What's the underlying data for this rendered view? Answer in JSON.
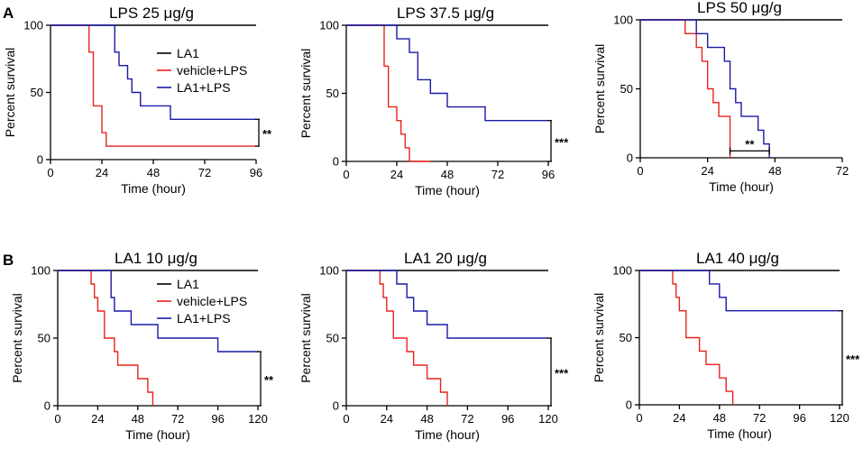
{
  "panel_labels": [
    "A",
    "B"
  ],
  "series_colors": {
    "LA1": "#000000",
    "vehicle+LPS": "#e8231c",
    "LA1+LPS": "#1a1aa8"
  },
  "chart_data": [
    {
      "type": "line",
      "step": true,
      "panel": "A",
      "title": "LPS  25 μg/g",
      "xlabel": "Time (hour)",
      "ylabel": "Percent survival",
      "xlim": [
        0,
        96
      ],
      "ylim": [
        0,
        100
      ],
      "xticks": [
        0,
        24,
        48,
        72,
        96
      ],
      "yticks": [
        0,
        50,
        100
      ],
      "legend": [
        "LA1",
        "vehicle+LPS",
        "LA1+LPS"
      ],
      "series": [
        {
          "name": "LA1",
          "x": [
            0,
            96
          ],
          "y": [
            100,
            100
          ]
        },
        {
          "name": "vehicle+LPS",
          "x": [
            0,
            18,
            20,
            22,
            24,
            26,
            96
          ],
          "y": [
            100,
            80,
            40,
            40,
            20,
            10,
            10
          ]
        },
        {
          "name": "LA1+LPS",
          "x": [
            0,
            30,
            32,
            36,
            38,
            42,
            48,
            56,
            96
          ],
          "y": [
            100,
            80,
            70,
            60,
            50,
            40,
            40,
            30,
            30
          ]
        }
      ],
      "significance": {
        "label": "**",
        "type": "vertical",
        "x": 96,
        "y_range": [
          10,
          30
        ]
      }
    },
    {
      "type": "line",
      "step": true,
      "panel": "A",
      "title": "LPS  37.5 μg/g",
      "xlabel": "Time (hour)",
      "ylabel": "Percent survival",
      "xlim": [
        0,
        96
      ],
      "ylim": [
        0,
        100
      ],
      "xticks": [
        0,
        24,
        48,
        72,
        96
      ],
      "yticks": [
        0,
        50,
        100
      ],
      "series": [
        {
          "name": "LA1",
          "x": [
            0,
            96
          ],
          "y": [
            100,
            100
          ]
        },
        {
          "name": "vehicle+LPS",
          "x": [
            0,
            18,
            20,
            24,
            26,
            28,
            30,
            40
          ],
          "y": [
            100,
            70,
            40,
            30,
            20,
            10,
            0,
            0
          ]
        },
        {
          "name": "LA1+LPS",
          "x": [
            0,
            24,
            30,
            34,
            40,
            48,
            66,
            96
          ],
          "y": [
            100,
            90,
            80,
            60,
            50,
            40,
            30,
            30
          ]
        }
      ],
      "significance": {
        "label": "***",
        "type": "vertical",
        "x": 96,
        "y_range": [
          0,
          30
        ]
      }
    },
    {
      "type": "line",
      "step": true,
      "panel": "A",
      "title": "LPS  50 μg/g",
      "xlabel": "Time (hour)",
      "ylabel": "Percent survival",
      "xlim": [
        0,
        72
      ],
      "ylim": [
        0,
        100
      ],
      "xticks": [
        0,
        24,
        48,
        72
      ],
      "yticks": [
        0,
        50,
        100
      ],
      "series": [
        {
          "name": "LA1",
          "x": [
            0,
            72
          ],
          "y": [
            100,
            100
          ]
        },
        {
          "name": "vehicle+LPS",
          "x": [
            0,
            16,
            20,
            22,
            24,
            26,
            28,
            32
          ],
          "y": [
            100,
            90,
            80,
            70,
            50,
            40,
            30,
            0
          ]
        },
        {
          "name": "LA1+LPS",
          "x": [
            0,
            20,
            24,
            30,
            32,
            34,
            36,
            40,
            42,
            44,
            46
          ],
          "y": [
            100,
            90,
            80,
            70,
            50,
            40,
            30,
            30,
            20,
            10,
            0
          ]
        }
      ],
      "significance": {
        "label": "**",
        "type": "horizontal",
        "y": 5,
        "x_range": [
          32,
          46
        ]
      }
    },
    {
      "type": "line",
      "step": true,
      "panel": "B",
      "title": "LA1  10 μg/g",
      "xlabel": "Time (hour)",
      "ylabel": "Percent survival",
      "xlim": [
        0,
        120
      ],
      "ylim": [
        0,
        100
      ],
      "xticks": [
        0,
        24,
        48,
        72,
        96,
        120
      ],
      "yticks": [
        0,
        50,
        100
      ],
      "legend": [
        "LA1",
        "vehicle+LPS",
        "LA1+LPS"
      ],
      "series": [
        {
          "name": "LA1",
          "x": [
            0,
            120
          ],
          "y": [
            100,
            100
          ]
        },
        {
          "name": "vehicle+LPS",
          "x": [
            0,
            20,
            22,
            24,
            28,
            34,
            36,
            48,
            54,
            57
          ],
          "y": [
            100,
            90,
            80,
            70,
            50,
            40,
            30,
            20,
            10,
            0
          ]
        },
        {
          "name": "LA1+LPS",
          "x": [
            0,
            32,
            34,
            36,
            44,
            48,
            60,
            72,
            96,
            120
          ],
          "y": [
            100,
            80,
            70,
            70,
            60,
            60,
            50,
            50,
            40,
            40
          ]
        }
      ],
      "significance": {
        "label": "**",
        "type": "vertical",
        "x": 120,
        "y_range": [
          0,
          40
        ]
      }
    },
    {
      "type": "line",
      "step": true,
      "panel": "B",
      "title": "LA1  20 μg/g",
      "xlabel": "Time (hour)",
      "ylabel": "Percent survival",
      "xlim": [
        0,
        120
      ],
      "ylim": [
        0,
        100
      ],
      "xticks": [
        0,
        24,
        48,
        72,
        96,
        120
      ],
      "yticks": [
        0,
        50,
        100
      ],
      "series": [
        {
          "name": "LA1",
          "x": [
            0,
            120
          ],
          "y": [
            100,
            100
          ]
        },
        {
          "name": "vehicle+LPS",
          "x": [
            0,
            20,
            22,
            24,
            28,
            36,
            40,
            48,
            56,
            60
          ],
          "y": [
            100,
            90,
            80,
            70,
            50,
            40,
            30,
            20,
            10,
            0
          ]
        },
        {
          "name": "LA1+LPS",
          "x": [
            0,
            30,
            36,
            40,
            48,
            56,
            60,
            120
          ],
          "y": [
            100,
            90,
            80,
            70,
            60,
            60,
            50,
            50
          ]
        }
      ],
      "significance": {
        "label": "***",
        "type": "vertical",
        "x": 120,
        "y_range": [
          0,
          50
        ]
      }
    },
    {
      "type": "line",
      "step": true,
      "panel": "B",
      "title": "LA1  40 μg/g",
      "xlabel": "Time (hour)",
      "ylabel": "Percent survival",
      "xlim": [
        0,
        120
      ],
      "ylim": [
        0,
        100
      ],
      "xticks": [
        0,
        24,
        48,
        72,
        96,
        120
      ],
      "yticks": [
        0,
        50,
        100
      ],
      "series": [
        {
          "name": "LA1",
          "x": [
            0,
            120
          ],
          "y": [
            100,
            100
          ]
        },
        {
          "name": "vehicle+LPS",
          "x": [
            0,
            20,
            22,
            24,
            28,
            36,
            40,
            48,
            52,
            56
          ],
          "y": [
            100,
            90,
            80,
            70,
            50,
            40,
            30,
            20,
            10,
            0
          ]
        },
        {
          "name": "LA1+LPS",
          "x": [
            0,
            42,
            48,
            52,
            56,
            120
          ],
          "y": [
            100,
            90,
            80,
            70,
            70,
            70
          ]
        }
      ],
      "significance": {
        "label": "***",
        "type": "vertical",
        "x": 120,
        "y_range": [
          0,
          70
        ]
      }
    }
  ]
}
